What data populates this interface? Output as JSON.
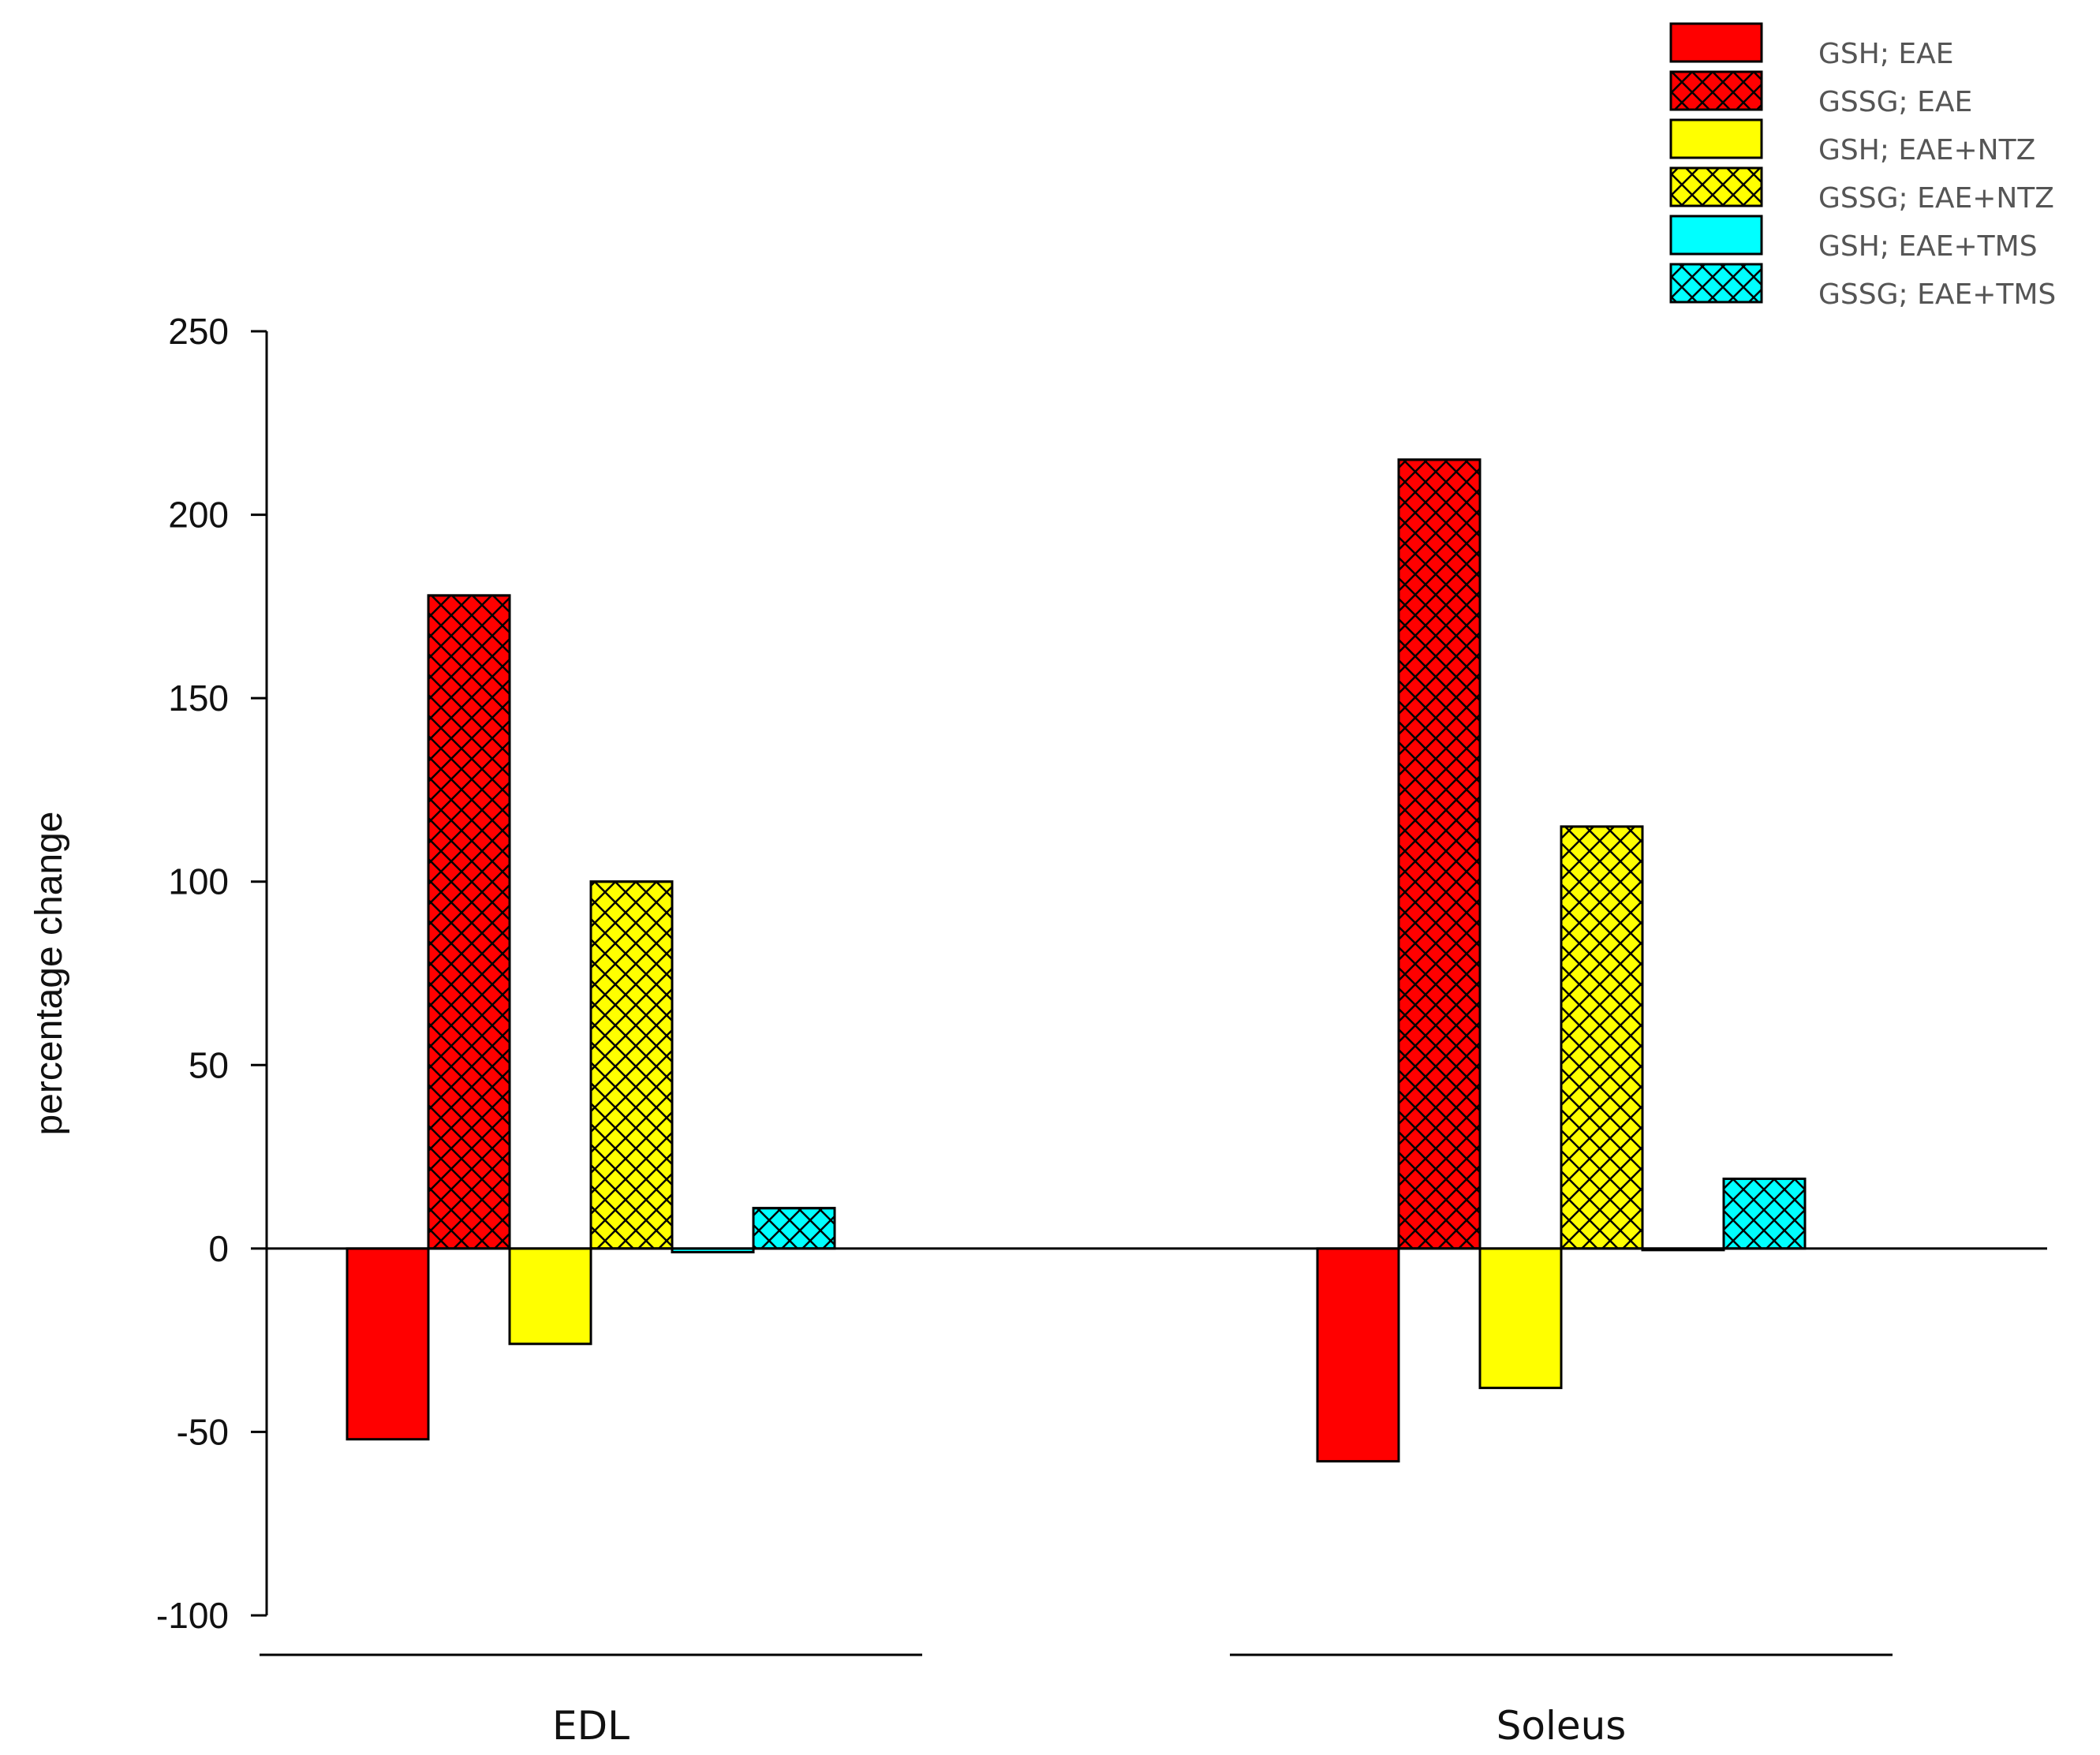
{
  "chart_data": {
    "type": "bar",
    "title": "",
    "xlabel": "",
    "ylabel": "percentage change",
    "ylim": [
      -100,
      250
    ],
    "yticks": [
      250,
      200,
      150,
      100,
      50,
      0,
      -50,
      -100
    ],
    "grid": false,
    "legend_position": "top-right",
    "categories": [
      "EDL",
      "Soleus"
    ],
    "series": [
      {
        "name": "GSH; EAE",
        "color": "#ff0000",
        "hatch": false,
        "values": [
          -52,
          -58
        ]
      },
      {
        "name": "GSSG; EAE",
        "color": "#ff0000",
        "hatch": true,
        "values": [
          178,
          215
        ]
      },
      {
        "name": "GSH; EAE+NTZ",
        "color": "#ffff00",
        "hatch": false,
        "values": [
          -26,
          -38
        ]
      },
      {
        "name": "GSSG; EAE+NTZ",
        "color": "#ffff00",
        "hatch": true,
        "values": [
          100,
          115
        ]
      },
      {
        "name": "GSH; EAE+TMS",
        "color": "#00ffff",
        "hatch": false,
        "values": [
          -1,
          0
        ]
      },
      {
        "name": "GSSG; EAE+TMS",
        "color": "#00ffff",
        "hatch": true,
        "values": [
          11,
          19
        ]
      }
    ]
  }
}
